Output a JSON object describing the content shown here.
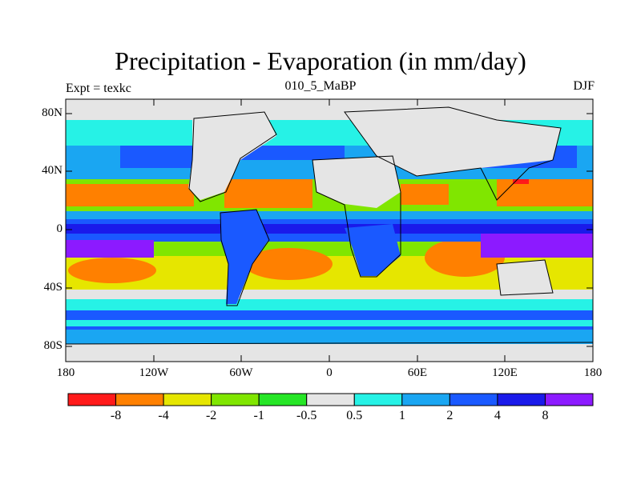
{
  "title": "Precipitation - Evaporation (in mm/day)",
  "subtitle_left": "Expt = texkc",
  "subtitle_center": "010_5_MaBP",
  "subtitle_right": "DJF",
  "map": {
    "lat_ticks": [
      "80N",
      "40N",
      "0",
      "40S",
      "80S"
    ],
    "lon_ticks": [
      "180",
      "120W",
      "60W",
      "0",
      "60E",
      "120E",
      "180"
    ],
    "background_color": "#e5e5e5"
  },
  "colorbar": {
    "colors": [
      "#ff1a1a",
      "#ff8000",
      "#e6e600",
      "#80e600",
      "#26e626",
      "#e5e5e5",
      "#26f2e6",
      "#1aa6f2",
      "#1a59ff",
      "#1a1aea",
      "#8c1aff"
    ],
    "labels": [
      "-8",
      "-4",
      "-2",
      "-1",
      "-0.5",
      "0.5",
      "1",
      "2",
      "4",
      "8"
    ]
  }
}
